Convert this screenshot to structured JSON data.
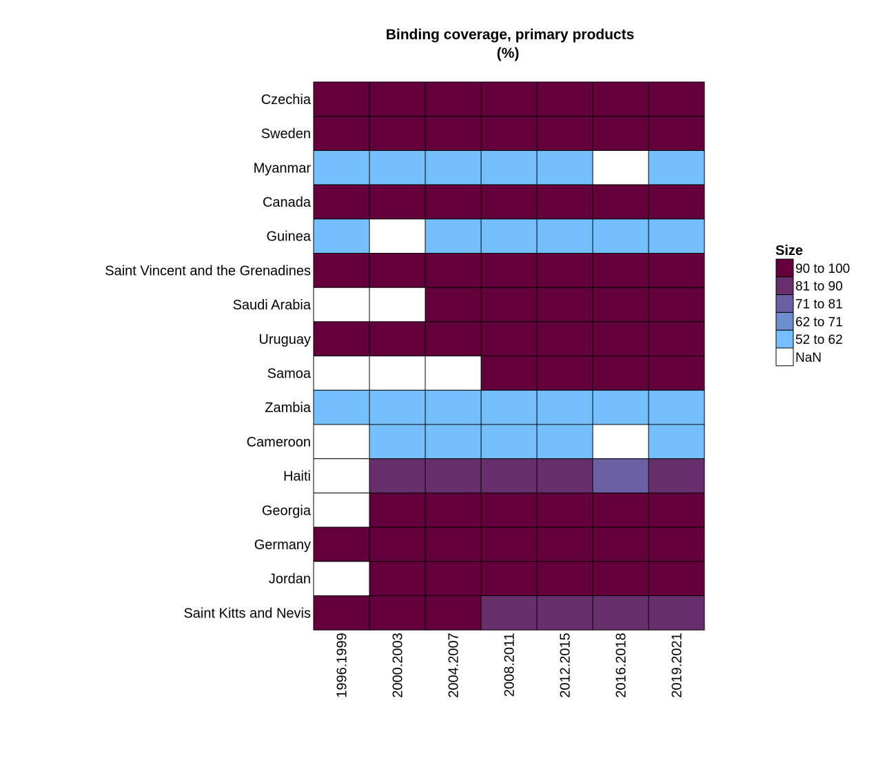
{
  "chart_data": {
    "type": "heatmap",
    "title": "Binding coverage, primary products",
    "subtitle": "(%)",
    "x": [
      "1996.1999",
      "2000.2003",
      "2004.2007",
      "2008.2011",
      "2012.2015",
      "2016.2018",
      "2019.2021"
    ],
    "y": [
      "Czechia",
      "Sweden",
      "Myanmar",
      "Canada",
      "Guinea",
      "Saint Vincent and the Grenadines",
      "Saudi Arabia",
      "Uruguay",
      "Samoa",
      "Zambia",
      "Cameroon",
      "Haiti",
      "Georgia",
      "Germany",
      "Jordan",
      "Saint Kitts and Nevis"
    ],
    "categories_grid": [
      [
        "90 to 100",
        "90 to 100",
        "90 to 100",
        "90 to 100",
        "90 to 100",
        "90 to 100",
        "90 to 100"
      ],
      [
        "90 to 100",
        "90 to 100",
        "90 to 100",
        "90 to 100",
        "90 to 100",
        "90 to 100",
        "90 to 100"
      ],
      [
        "52 to 62",
        "52 to 62",
        "52 to 62",
        "52 to 62",
        "52 to 62",
        "NaN",
        "52 to 62"
      ],
      [
        "90 to 100",
        "90 to 100",
        "90 to 100",
        "90 to 100",
        "90 to 100",
        "90 to 100",
        "90 to 100"
      ],
      [
        "52 to 62",
        "NaN",
        "52 to 62",
        "52 to 62",
        "52 to 62",
        "52 to 62",
        "52 to 62"
      ],
      [
        "90 to 100",
        "90 to 100",
        "90 to 100",
        "90 to 100",
        "90 to 100",
        "90 to 100",
        "90 to 100"
      ],
      [
        "NaN",
        "NaN",
        "90 to 100",
        "90 to 100",
        "90 to 100",
        "90 to 100",
        "90 to 100"
      ],
      [
        "90 to 100",
        "90 to 100",
        "90 to 100",
        "90 to 100",
        "90 to 100",
        "90 to 100",
        "90 to 100"
      ],
      [
        "NaN",
        "NaN",
        "NaN",
        "90 to 100",
        "90 to 100",
        "90 to 100",
        "90 to 100"
      ],
      [
        "52 to 62",
        "52 to 62",
        "52 to 62",
        "52 to 62",
        "52 to 62",
        "52 to 62",
        "52 to 62"
      ],
      [
        "NaN",
        "52 to 62",
        "52 to 62",
        "52 to 62",
        "52 to 62",
        "NaN",
        "52 to 62"
      ],
      [
        "NaN",
        "81 to 90",
        "81 to 90",
        "81 to 90",
        "81 to 90",
        "71 to 81",
        "81 to 90"
      ],
      [
        "NaN",
        "90 to 100",
        "90 to 100",
        "90 to 100",
        "90 to 100",
        "90 to 100",
        "90 to 100"
      ],
      [
        "90 to 100",
        "90 to 100",
        "90 to 100",
        "90 to 100",
        "90 to 100",
        "90 to 100",
        "90 to 100"
      ],
      [
        "NaN",
        "90 to 100",
        "90 to 100",
        "90 to 100",
        "90 to 100",
        "90 to 100",
        "90 to 100"
      ],
      [
        "90 to 100",
        "90 to 100",
        "90 to 100",
        "81 to 90",
        "81 to 90",
        "81 to 90",
        "81 to 90"
      ]
    ],
    "legend": {
      "title": "Size",
      "placement": "right",
      "items": [
        {
          "label": "90 to 100",
          "color": "#63003c"
        },
        {
          "label": "81 to 90",
          "color": "#67306d"
        },
        {
          "label": "71 to 81",
          "color": "#6a60a2"
        },
        {
          "label": "62 to 71",
          "color": "#6f8ed0"
        },
        {
          "label": "52 to 62",
          "color": "#76bfff"
        },
        {
          "label": "NaN",
          "color": "#ffffff"
        }
      ]
    },
    "grid": false
  }
}
